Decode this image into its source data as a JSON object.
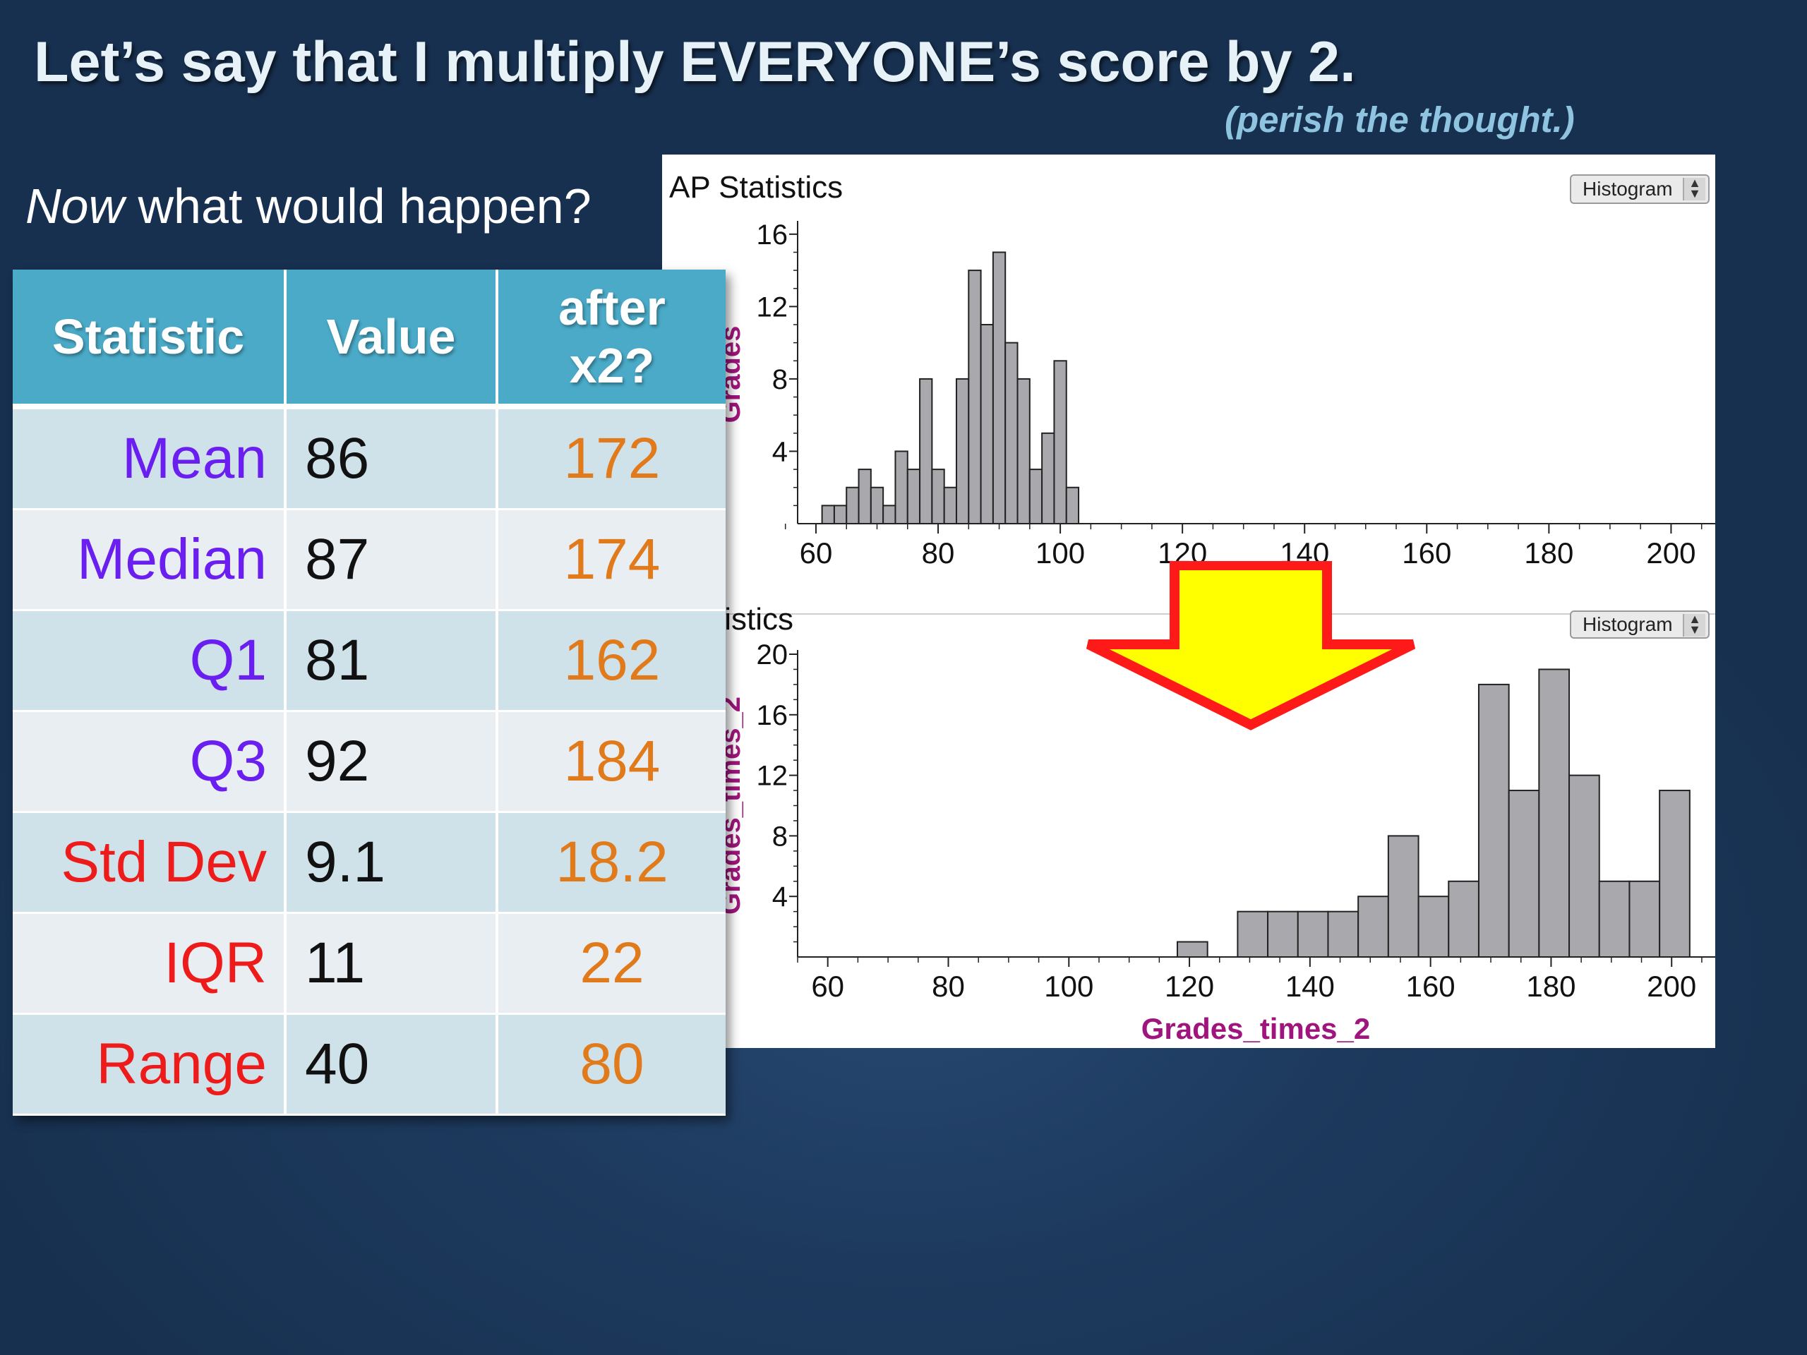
{
  "slide": {
    "title": "Let’s say that I multiply EVERYONE’s score by 2.",
    "subtitle": "(perish the thought.)",
    "question_emphasis": "Now",
    "question_rest": " what would happen?"
  },
  "table": {
    "headers": [
      "Statistic",
      "Value",
      "after x2?"
    ],
    "rows": [
      {
        "name": "Mean",
        "value": "86",
        "after": "172",
        "color": "#6a1ef0"
      },
      {
        "name": "Median",
        "value": "87",
        "after": "174",
        "color": "#6a1ef0"
      },
      {
        "name": "Q1",
        "value": "81",
        "after": "162",
        "color": "#6a1ef0"
      },
      {
        "name": "Q3",
        "value": "92",
        "after": "184",
        "color": "#6a1ef0"
      },
      {
        "name": "Std Dev",
        "value": "9.1",
        "after": "18.2",
        "color": "#ee1b1b"
      },
      {
        "name": "IQR",
        "value": "11",
        "after": "22",
        "color": "#ee1b1b"
      },
      {
        "name": "Range",
        "value": "40",
        "after": "80",
        "color": "#ee1b1b"
      }
    ],
    "after_color": "#e07a1a"
  },
  "arrow": {
    "fill": "#ffff00",
    "stroke": "#ff1a1a",
    "direction": "down"
  },
  "chart_data": [
    {
      "type": "bar",
      "title": "AP Statistics",
      "selector": "Histogram",
      "ylabel": "Grades",
      "xlabel": "",
      "xlim": [
        57,
        207
      ],
      "ylim": [
        0,
        16.5
      ],
      "xticks": [
        60,
        80,
        100,
        120,
        140,
        160,
        180,
        200
      ],
      "yticks": [
        4,
        8,
        12,
        16
      ],
      "bin_width": 2,
      "bin_starts": [
        61,
        63,
        65,
        67,
        69,
        71,
        73,
        75,
        77,
        79,
        81,
        83,
        85,
        87,
        89,
        91,
        93,
        95,
        97,
        99,
        101
      ],
      "values": [
        1,
        1,
        2,
        3,
        2,
        1,
        4,
        3,
        8,
        3,
        2,
        8,
        14,
        11,
        15,
        10,
        8,
        3,
        5,
        9,
        2
      ],
      "bar_color": "#a9a9ad"
    },
    {
      "type": "bar",
      "title": "Statistics",
      "selector": "Histogram",
      "ylabel": "Grades_times_2",
      "xlabel": "Grades_times_2",
      "xlim": [
        55,
        207
      ],
      "ylim": [
        0,
        20
      ],
      "xticks": [
        60,
        80,
        100,
        120,
        140,
        160,
        180,
        200
      ],
      "yticks": [
        4,
        8,
        12,
        16,
        20
      ],
      "bin_width": 5,
      "bin_starts": [
        118,
        128,
        133,
        138,
        143,
        148,
        153,
        158,
        163,
        168,
        173,
        178,
        183,
        188,
        193,
        198
      ],
      "values": [
        1,
        3,
        3,
        3,
        3,
        4,
        8,
        4,
        5,
        18,
        11,
        19,
        12,
        5,
        5,
        11
      ],
      "bar_color": "#a9a9ad"
    }
  ]
}
